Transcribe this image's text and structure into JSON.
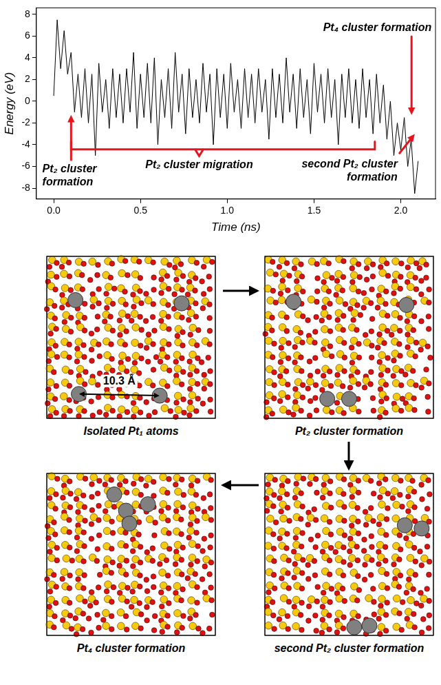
{
  "chart_data": {
    "type": "line",
    "x_label": "Time (ns)",
    "y_label": "Energy (eV)",
    "x": [
      0,
      0.02,
      0.04,
      0.06,
      0.08,
      0.1,
      0.12,
      0.14,
      0.16,
      0.18,
      0.2,
      0.22,
      0.24,
      0.26,
      0.28,
      0.3,
      0.32,
      0.34,
      0.36,
      0.38,
      0.4,
      0.42,
      0.44,
      0.46,
      0.48,
      0.5,
      0.52,
      0.54,
      0.56,
      0.58,
      0.6,
      0.62,
      0.64,
      0.66,
      0.68,
      0.7,
      0.72,
      0.74,
      0.76,
      0.78,
      0.8,
      0.82,
      0.84,
      0.86,
      0.88,
      0.9,
      0.92,
      0.94,
      0.96,
      0.98,
      1,
      1.02,
      1.04,
      1.06,
      1.08,
      1.1,
      1.12,
      1.14,
      1.16,
      1.18,
      1.2,
      1.22,
      1.24,
      1.26,
      1.28,
      1.3,
      1.32,
      1.34,
      1.36,
      1.38,
      1.4,
      1.42,
      1.44,
      1.46,
      1.48,
      1.5,
      1.52,
      1.54,
      1.56,
      1.58,
      1.6,
      1.62,
      1.64,
      1.66,
      1.68,
      1.7,
      1.72,
      1.74,
      1.76,
      1.78,
      1.8,
      1.82,
      1.84,
      1.86,
      1.88,
      1.9,
      1.92,
      1.94,
      1.96,
      1.98,
      2,
      2.02,
      2.04,
      2.06,
      2.08,
      2.1
    ],
    "values": [
      0.5,
      7.5,
      3.0,
      6.5,
      2.5,
      4.5,
      -1.0,
      2.5,
      -1.5,
      3.0,
      -2.0,
      2.5,
      -5.0,
      3.5,
      -1.0,
      2.0,
      -2.5,
      3.0,
      -1.5,
      2.5,
      -2.0,
      3.0,
      -1.0,
      4.5,
      -2.5,
      2.5,
      -1.5,
      3.5,
      -2.0,
      4.0,
      -4.0,
      2.0,
      -1.5,
      3.0,
      -2.5,
      4.5,
      -1.0,
      2.5,
      -3.0,
      3.0,
      -1.5,
      2.0,
      -2.0,
      3.5,
      -1.0,
      2.5,
      -4.0,
      3.0,
      -1.5,
      2.5,
      -2.5,
      3.5,
      -1.0,
      2.0,
      -2.5,
      3.0,
      -1.5,
      2.5,
      -2.0,
      3.0,
      -1.0,
      2.0,
      -3.5,
      3.0,
      -1.5,
      2.5,
      -2.0,
      4.0,
      -1.0,
      2.5,
      -2.5,
      3.0,
      -1.5,
      2.0,
      -3.0,
      3.5,
      -1.0,
      2.5,
      -2.0,
      3.0,
      -1.5,
      2.0,
      -4.0,
      2.5,
      -1.5,
      3.0,
      -2.0,
      2.0,
      -2.5,
      3.0,
      -1.5,
      2.0,
      -3.0,
      2.5,
      -2.0,
      1.5,
      -3.5,
      0.0,
      -5.0,
      -2.0,
      -4.5,
      -1.5,
      -6.0,
      -3.5,
      -8.5,
      -5.5
    ],
    "color": "#000000",
    "xlim": [
      -0.1,
      2.2
    ],
    "xticks": [
      {
        "value": 0,
        "label": "0.0"
      },
      0.5,
      {
        "value": 1,
        "label": "1.0"
      },
      1.5,
      {
        "value": 2,
        "label": "2.0"
      }
    ],
    "ylim": [
      -9,
      8.6
    ],
    "yticks": [
      -8,
      -6,
      -4,
      -2,
      0,
      2,
      4,
      6,
      8
    ],
    "grid": false,
    "annotations": [
      "Pt₂ cluster formation",
      "Pt₂ cluster migration",
      "second Pt₂ cluster formation",
      "Pt₄ cluster formation"
    ]
  },
  "panels": [
    {
      "caption": "Isolated Pt₁ atoms",
      "annotation": "10.3 Å"
    },
    {
      "caption": "Pt₂ cluster formation"
    },
    {
      "caption": "second Pt₂ cluster formation"
    },
    {
      "caption": "Pt₄ cluster formation"
    }
  ]
}
